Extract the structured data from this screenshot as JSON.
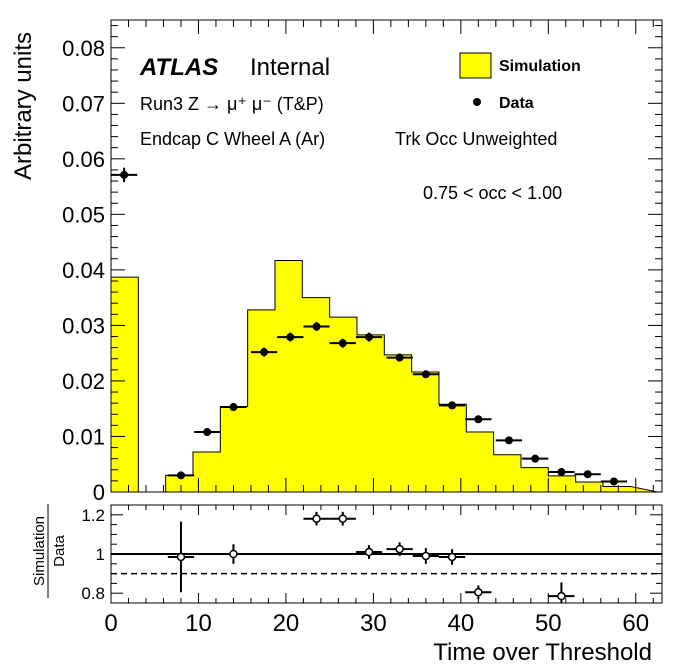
{
  "chart_data": [
    {
      "type": "histogram",
      "ylabel": "Arbitrary units",
      "xlim": [
        0,
        63
      ],
      "ylim": [
        0,
        0.085
      ],
      "yticks": [
        0,
        0.01,
        0.02,
        0.03,
        0.04,
        0.05,
        0.06,
        0.07,
        0.08
      ],
      "yticklabels": [
        "0",
        "0.01",
        "0.02",
        "0.03",
        "0.04",
        "0.05",
        "0.06",
        "0.07",
        "0.08"
      ],
      "labels": {
        "atlas": "ATLAS",
        "internal": "Internal",
        "process": "Run3 Z → μ⁺ μ⁻ (T&P)",
        "region": "Endcap C Wheel A (Ar)",
        "weighting": "Trk Occ Unweighted",
        "occupancy": "0.75 < occ < 1.00"
      },
      "legend_position": "top-right",
      "series": [
        {
          "name": "Simulation",
          "style": "filled-histogram",
          "color": "#ffff00",
          "bin_edges": [
            0,
            3.125,
            6.25,
            9.375,
            12.5,
            15.625,
            18.75,
            21.875,
            25,
            28.125,
            31.25,
            34.375,
            37.5,
            40.625,
            43.75,
            46.875,
            50,
            53.125,
            56.25,
            59.375
          ],
          "values": [
            0.0387,
            0.0,
            0.003,
            0.0072,
            0.0154,
            0.0328,
            0.0417,
            0.035,
            0.0315,
            0.0283,
            0.0247,
            0.0216,
            0.0158,
            0.0108,
            0.0067,
            0.0044,
            0.0029,
            0.0018,
            0.001
          ]
        },
        {
          "name": "Data",
          "style": "points",
          "color": "#000000",
          "x": [
            1.5,
            8,
            11,
            14,
            17.5,
            20.5,
            23.5,
            26.5,
            29.5,
            33,
            36,
            39,
            42,
            45.5,
            48.5,
            51.5,
            54.5,
            57.5
          ],
          "y": [
            0.0571,
            0.003,
            0.0108,
            0.0153,
            0.0252,
            0.0279,
            0.0298,
            0.0268,
            0.0279,
            0.0242,
            0.0212,
            0.0156,
            0.0131,
            0.0093,
            0.006,
            0.0036,
            0.0032,
            0.0019
          ],
          "yerr": [
            0.0013,
            0.0003,
            0.0004,
            0.0005,
            0.0008,
            0.0008,
            0.0008,
            0.0008,
            0.0008,
            0.0007,
            0.0006,
            0.0005,
            0.0004,
            0.0004,
            0.0003,
            0.0003,
            0.0003,
            0.0003
          ]
        }
      ]
    },
    {
      "type": "scatter",
      "xlabel": "Time over Threshold",
      "ylabel": "Simulation",
      "ylabel_denominator": "Data",
      "xlim": [
        0,
        63
      ],
      "ylim": [
        0.75,
        1.25
      ],
      "xticks": [
        0,
        10,
        20,
        30,
        40,
        50,
        60
      ],
      "xticklabels": [
        "0",
        "10",
        "20",
        "30",
        "40",
        "50",
        "60"
      ],
      "yticks": [
        0.8,
        1.0,
        1.2
      ],
      "yticklabels": [
        "0.8",
        "1",
        "1.2"
      ],
      "reference_lines": [
        {
          "y": 1.0,
          "style": "solid"
        },
        {
          "y": 0.9,
          "style": "dashed"
        }
      ],
      "series": [
        {
          "name": "Simulation / Data",
          "style": "open-points",
          "x": [
            8,
            14,
            23.5,
            26.5,
            29.5,
            33,
            36,
            39,
            42,
            51.5
          ],
          "y": [
            0.985,
            1.0,
            1.18,
            1.18,
            1.01,
            1.025,
            0.99,
            0.985,
            0.805,
            0.785
          ],
          "xerr": [
            1.5,
            1.5,
            1.5,
            1.5,
            1.5,
            1.5,
            1.5,
            1.5,
            1.5,
            1.5
          ],
          "yerr": [
            0.18,
            0.05,
            0.035,
            0.035,
            0.035,
            0.035,
            0.04,
            0.04,
            0.035,
            0.07
          ]
        }
      ]
    }
  ]
}
